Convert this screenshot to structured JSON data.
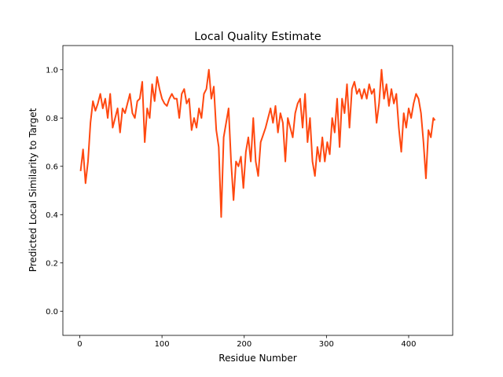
{
  "chart_data": {
    "type": "line",
    "title": "Local Quality Estimate",
    "xlabel": "Residue Number",
    "ylabel": "Predicted Local Similarity to Target",
    "x": [
      1,
      4,
      7,
      10,
      13,
      16,
      19,
      22,
      25,
      28,
      31,
      34,
      37,
      40,
      43,
      46,
      49,
      52,
      55,
      58,
      61,
      64,
      67,
      70,
      73,
      76,
      79,
      82,
      85,
      88,
      91,
      94,
      97,
      100,
      103,
      106,
      109,
      112,
      115,
      118,
      121,
      124,
      127,
      130,
      133,
      136,
      139,
      142,
      145,
      148,
      151,
      154,
      157,
      160,
      163,
      166,
      169,
      172,
      175,
      178,
      181,
      184,
      187,
      190,
      193,
      196,
      199,
      202,
      205,
      208,
      211,
      214,
      217,
      220,
      223,
      226,
      229,
      232,
      235,
      238,
      241,
      244,
      247,
      250,
      253,
      256,
      259,
      262,
      265,
      268,
      271,
      274,
      277,
      280,
      283,
      286,
      289,
      292,
      295,
      298,
      301,
      304,
      307,
      310,
      313,
      316,
      319,
      322,
      325,
      328,
      331,
      334,
      337,
      340,
      343,
      346,
      349,
      352,
      355,
      358,
      361,
      364,
      367,
      370,
      373,
      376,
      379,
      382,
      385,
      388,
      391,
      394,
      397,
      400,
      403,
      406,
      409,
      412,
      415,
      418,
      421,
      424,
      427,
      430,
      432
    ],
    "series": [
      {
        "color": "#ff4810",
        "values": [
          0.58,
          0.67,
          0.53,
          0.62,
          0.78,
          0.87,
          0.83,
          0.86,
          0.9,
          0.84,
          0.88,
          0.8,
          0.9,
          0.76,
          0.8,
          0.84,
          0.74,
          0.84,
          0.82,
          0.86,
          0.9,
          0.82,
          0.8,
          0.87,
          0.88,
          0.95,
          0.7,
          0.84,
          0.8,
          0.94,
          0.87,
          0.97,
          0.92,
          0.88,
          0.86,
          0.85,
          0.88,
          0.9,
          0.88,
          0.88,
          0.8,
          0.9,
          0.92,
          0.86,
          0.88,
          0.75,
          0.8,
          0.76,
          0.84,
          0.8,
          0.9,
          0.92,
          1.0,
          0.88,
          0.93,
          0.75,
          0.68,
          0.39,
          0.72,
          0.78,
          0.84,
          0.62,
          0.46,
          0.62,
          0.6,
          0.64,
          0.51,
          0.66,
          0.72,
          0.62,
          0.8,
          0.62,
          0.56,
          0.7,
          0.73,
          0.76,
          0.8,
          0.84,
          0.78,
          0.85,
          0.74,
          0.82,
          0.78,
          0.62,
          0.8,
          0.76,
          0.72,
          0.82,
          0.86,
          0.88,
          0.76,
          0.9,
          0.7,
          0.8,
          0.62,
          0.56,
          0.68,
          0.62,
          0.72,
          0.62,
          0.7,
          0.65,
          0.8,
          0.74,
          0.88,
          0.68,
          0.88,
          0.82,
          0.94,
          0.76,
          0.92,
          0.95,
          0.9,
          0.92,
          0.88,
          0.92,
          0.88,
          0.94,
          0.9,
          0.92,
          0.78,
          0.86,
          1.0,
          0.88,
          0.94,
          0.85,
          0.92,
          0.86,
          0.9,
          0.76,
          0.66,
          0.82,
          0.76,
          0.84,
          0.8,
          0.86,
          0.9,
          0.88,
          0.82,
          0.7,
          0.55,
          0.75,
          0.72,
          0.8,
          0.79
        ]
      }
    ],
    "xlim": [
      -20.55,
      453.55
    ],
    "xticks": [
      0,
      100,
      200,
      300,
      400
    ],
    "ylim": [
      -0.1,
      1.1
    ],
    "yticks": [
      {
        "value": 0,
        "label": "0.0"
      },
      0.2,
      0.4,
      0.6,
      0.8,
      {
        "value": 1,
        "label": "1.0"
      }
    ]
  }
}
